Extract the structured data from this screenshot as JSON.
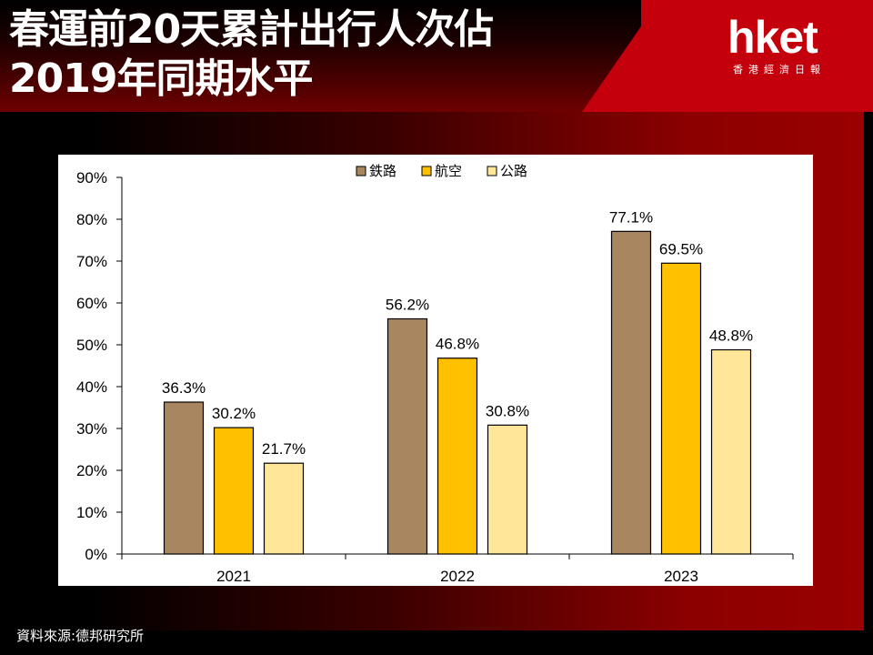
{
  "header": {
    "title_line1": "春運前20天累計出行人次佔",
    "title_line2": "2019年同期水平",
    "logo_main": "hket",
    "logo_sub": "香港經濟日報"
  },
  "source": "資料來源:德邦研究所",
  "colors": {
    "rail": "#a78660",
    "air": "#ffc000",
    "road": "#ffe699",
    "header_red": "#c3000b"
  },
  "chart_data": {
    "type": "bar",
    "title": "",
    "xlabel": "",
    "ylabel": "",
    "categories": [
      "2021",
      "2022",
      "2023"
    ],
    "series": [
      {
        "name": "鉄路",
        "values": [
          36.3,
          56.2,
          77.1
        ],
        "labels": [
          "36.3%",
          "56.2%",
          "77.1%"
        ]
      },
      {
        "name": "航空",
        "values": [
          30.2,
          46.8,
          69.5
        ],
        "labels": [
          "30.2%",
          "46.8%",
          "69.5%"
        ]
      },
      {
        "name": "公路",
        "values": [
          21.7,
          30.8,
          48.8
        ],
        "labels": [
          "21.7%",
          "30.8%",
          "48.8%"
        ]
      }
    ],
    "ylim": [
      0,
      90
    ],
    "yticks": [
      "0%",
      "10%",
      "20%",
      "30%",
      "40%",
      "50%",
      "60%",
      "70%",
      "80%",
      "90%"
    ],
    "legend_position": "top-center",
    "grid": false
  }
}
